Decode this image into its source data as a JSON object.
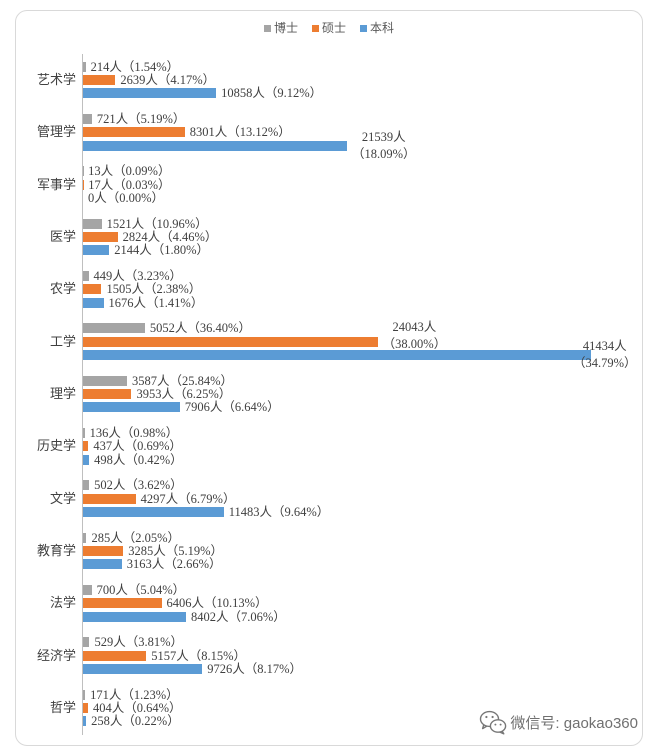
{
  "chart_data": {
    "type": "bar",
    "orientation": "horizontal",
    "categories": [
      "艺术学",
      "管理学",
      "军事学",
      "医学",
      "农学",
      "工学",
      "理学",
      "历史学",
      "文学",
      "教育学",
      "法学",
      "经济学",
      "哲学"
    ],
    "series": [
      {
        "name": "博士",
        "color": "#A5A5A5",
        "values": [
          214,
          721,
          13,
          1521,
          449,
          5052,
          3587,
          136,
          502,
          285,
          700,
          529,
          171
        ],
        "labels": [
          "214人（1.54%）",
          "721人（5.19%）",
          "13人（0.09%）",
          "1521人（10.96%）",
          "449人（3.23%）",
          "5052人（36.40%）",
          "3587人（25.84%）",
          "136人（0.98%）",
          "502人（3.62%）",
          "285人（2.05%）",
          "700人（5.04%）",
          "529人（3.81%）",
          "171人（1.23%）"
        ]
      },
      {
        "name": "硕士",
        "color": "#ED7D31",
        "values": [
          2639,
          8301,
          17,
          2824,
          1505,
          24043,
          3953,
          437,
          4297,
          3285,
          6406,
          5157,
          404
        ],
        "labels": [
          "2639人（4.17%）",
          "8301人（13.12%）",
          "17人（0.03%）",
          "2824人（4.46%）",
          "1505人（2.38%）",
          "24043人（38.00%）",
          "3953人（6.25%）",
          "437人（0.69%）",
          "4297人（6.79%）",
          "3285人（5.19%）",
          "6406人（10.13%）",
          "5157人（8.15%）",
          "404人（0.64%）"
        ]
      },
      {
        "name": "本科",
        "color": "#5B9BD5",
        "values": [
          10858,
          21539,
          0,
          2144,
          1676,
          41434,
          7906,
          498,
          11483,
          3163,
          8402,
          9726,
          258
        ],
        "labels": [
          "10858人（9.12%）",
          "21539人（18.09%）",
          "0人（0.00%）",
          "2144人（1.80%）",
          "1676人（1.41%）",
          "41434人（34.79%）",
          "7906人（6.64%）",
          "498人（0.42%）",
          "11483人（9.64%）",
          "3163人（2.66%）",
          "8402人（7.06%）",
          "9726人（8.17%）",
          "258人（0.22%）"
        ]
      }
    ],
    "xlim": [
      0,
      45000
    ],
    "legend": "top",
    "grid": false,
    "data_labels": true
  },
  "watermark": {
    "text": "微信号: gaokao360",
    "icon": "wechat-icon"
  }
}
